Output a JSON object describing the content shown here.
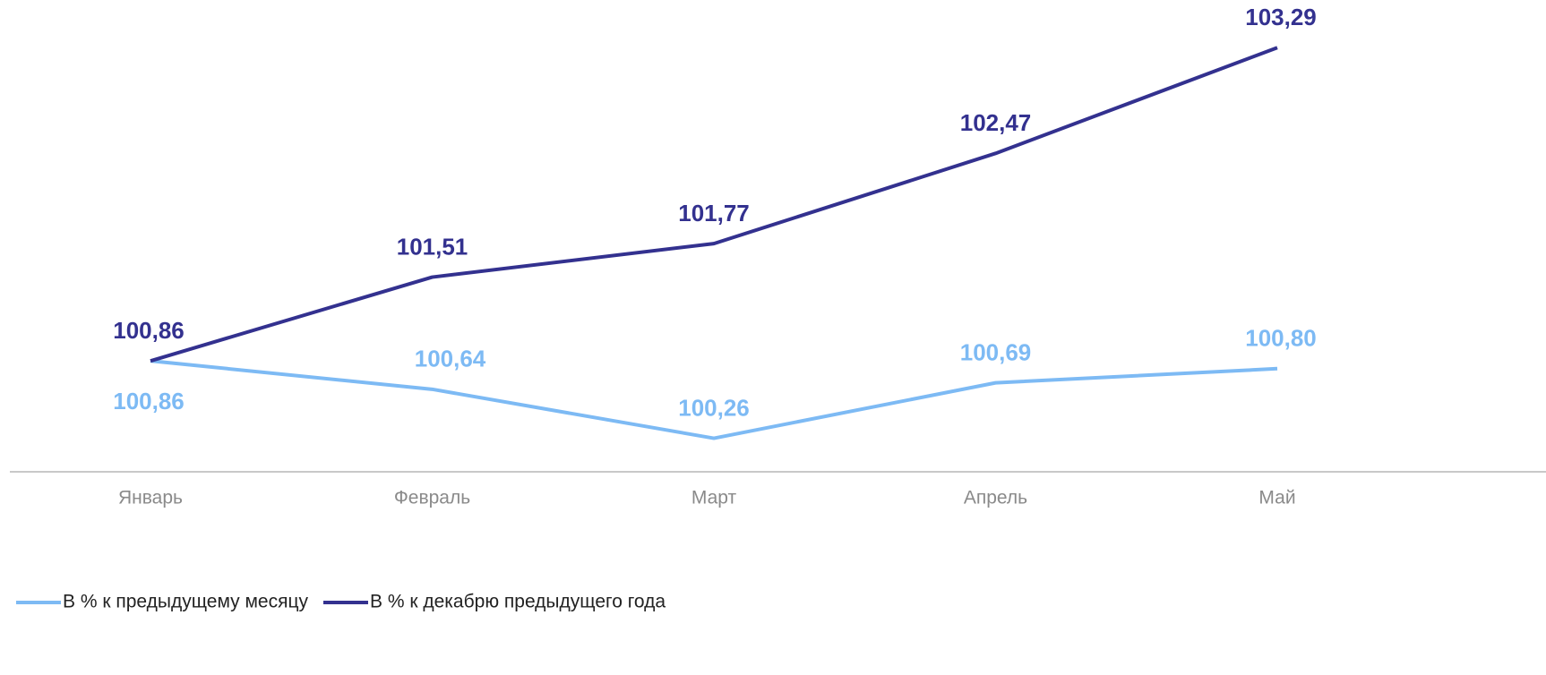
{
  "chart_data": {
    "type": "line",
    "categories": [
      "Январь",
      "Февраль",
      "Март",
      "Апрель",
      "Май"
    ],
    "series": [
      {
        "name": "В % к предыдущему месяцу",
        "color": "#7dbaf4",
        "values": [
          100.86,
          100.64,
          100.26,
          100.69,
          100.8
        ],
        "value_labels": [
          "100,86",
          "100,64",
          "100,26",
          "100,69",
          "100,80"
        ]
      },
      {
        "name": "В % к декабрю предыдущего года",
        "color": "#33318f",
        "values": [
          100.86,
          101.51,
          101.77,
          102.47,
          103.29
        ],
        "value_labels": [
          "100,86",
          "101,51",
          "101,77",
          "102,47",
          "103,29"
        ]
      }
    ],
    "ylim": [
      100,
      103.5
    ],
    "legend": "bottom-left"
  }
}
